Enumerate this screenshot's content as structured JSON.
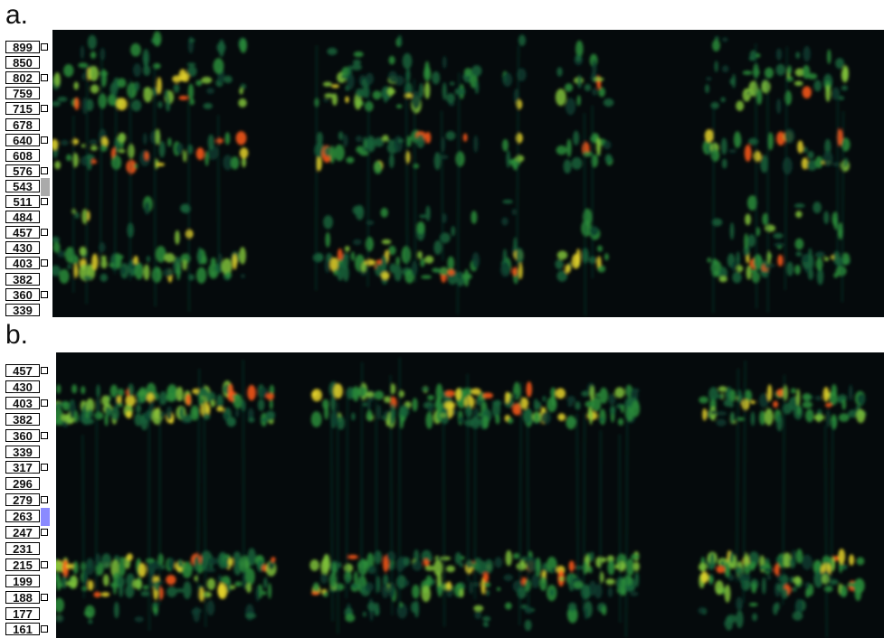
{
  "panels": [
    {
      "label": "a.",
      "frequency_labels": [
        899,
        850,
        802,
        759,
        715,
        678,
        640,
        608,
        576,
        543,
        511,
        484,
        457,
        430,
        403,
        382,
        360,
        339
      ]
    },
    {
      "label": "b.",
      "frequency_labels": [
        457,
        430,
        403,
        382,
        360,
        339,
        317,
        296,
        279,
        263,
        247,
        231,
        215,
        199,
        188,
        177,
        161
      ]
    }
  ]
}
